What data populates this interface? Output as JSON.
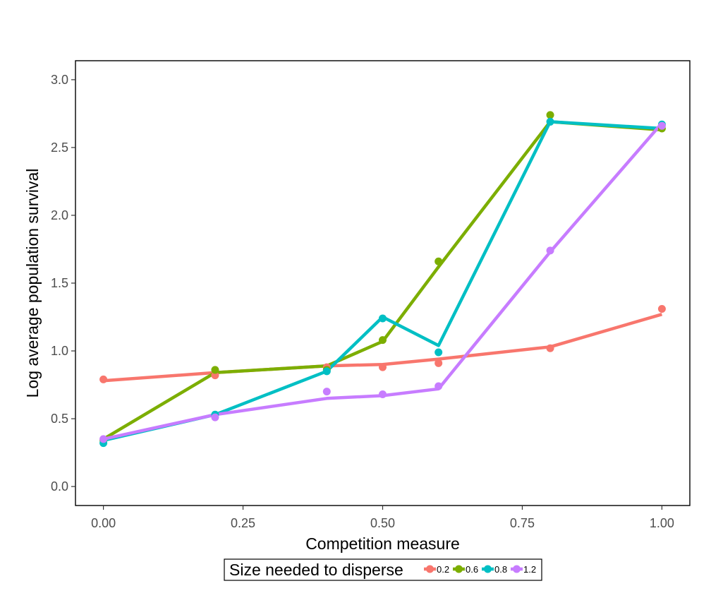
{
  "chart_data": {
    "type": "line",
    "xlabel": "Competition measure",
    "ylabel": "Log average population survival",
    "xlim": [
      -0.05,
      1.05
    ],
    "ylim": [
      -0.14,
      3.14
    ],
    "x_ticks": [
      0.0,
      0.25,
      0.5,
      0.75,
      1.0
    ],
    "x_tick_labels": [
      "0.00",
      "0.25",
      "0.50",
      "0.75",
      "1.00"
    ],
    "y_ticks": [
      0.0,
      0.5,
      1.0,
      1.5,
      2.0,
      2.5,
      3.0
    ],
    "y_tick_labels": [
      "0.0",
      "0.5",
      "1.0",
      "1.5",
      "2.0",
      "2.5",
      "3.0"
    ],
    "grid": false,
    "legend_position": "bottom",
    "legend_title": "Size needed to disperse",
    "series": [
      {
        "name": "0.2",
        "color": "#F8766D",
        "points": {
          "x": [
            0,
            0.2,
            0.4,
            0.5,
            0.6,
            0.8,
            1.0
          ],
          "y": [
            0.79,
            0.82,
            0.88,
            0.88,
            0.91,
            1.02,
            1.31
          ]
        },
        "line": {
          "x": [
            0,
            0.2,
            0.4,
            0.5,
            0.6,
            0.8,
            1.0
          ],
          "y": [
            0.78,
            0.84,
            0.89,
            0.9,
            0.94,
            1.03,
            1.27
          ]
        }
      },
      {
        "name": "0.6",
        "color": "#7CAE00",
        "points": {
          "x": [
            0,
            0.2,
            0.4,
            0.5,
            0.6,
            0.8,
            1.0
          ],
          "y": [
            0.34,
            0.86,
            0.86,
            1.08,
            1.66,
            2.74,
            2.64
          ]
        },
        "line": {
          "x": [
            0,
            0.2,
            0.4,
            0.5,
            0.6,
            0.8,
            1.0
          ],
          "y": [
            0.35,
            0.84,
            0.89,
            1.07,
            1.62,
            2.69,
            2.63
          ]
        }
      },
      {
        "name": "0.8",
        "color": "#00BFC4",
        "points": {
          "x": [
            0,
            0.2,
            0.4,
            0.5,
            0.6,
            0.8,
            1.0
          ],
          "y": [
            0.32,
            0.53,
            0.85,
            1.24,
            0.99,
            2.69,
            2.67
          ]
        },
        "line": {
          "x": [
            0,
            0.2,
            0.4,
            0.5,
            0.6,
            0.8,
            1.0
          ],
          "y": [
            0.34,
            0.53,
            0.85,
            1.25,
            1.04,
            2.69,
            2.64
          ]
        }
      },
      {
        "name": "1.2",
        "color": "#C77CFF",
        "points": {
          "x": [
            0,
            0.2,
            0.4,
            0.5,
            0.6,
            0.8,
            1.0
          ],
          "y": [
            0.35,
            0.51,
            0.7,
            0.68,
            0.74,
            1.74,
            2.66
          ]
        },
        "line": {
          "x": [
            0,
            0.2,
            0.4,
            0.5,
            0.6,
            0.8,
            1.0
          ],
          "y": [
            0.35,
            0.53,
            0.65,
            0.67,
            0.72,
            1.73,
            2.68
          ]
        }
      }
    ]
  }
}
